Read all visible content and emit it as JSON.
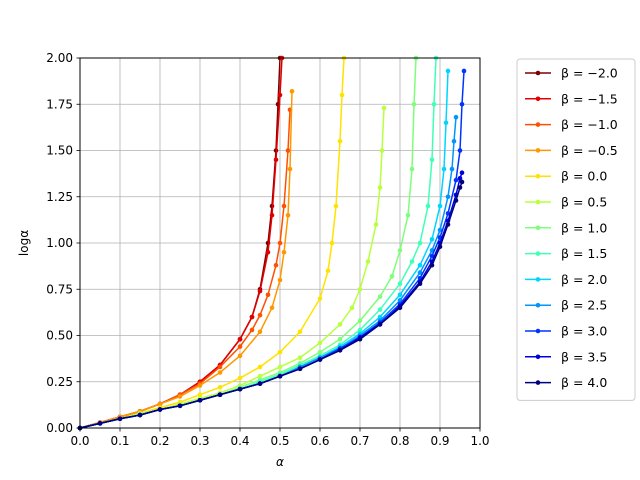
{
  "chart_data": {
    "type": "line",
    "xlabel": "α",
    "ylabel": "logα",
    "xlim": [
      0.0,
      1.0
    ],
    "ylim": [
      0.0,
      2.0
    ],
    "grid": true,
    "legend_position": "outside-right",
    "xticks": [
      "0.0",
      "0.1",
      "0.2",
      "0.3",
      "0.4",
      "0.5",
      "0.6",
      "0.7",
      "0.8",
      "0.9",
      "1.0"
    ],
    "yticks": [
      "0.00",
      "0.25",
      "0.50",
      "0.75",
      "1.00",
      "1.25",
      "1.50",
      "1.75",
      "2.00"
    ],
    "series": [
      {
        "name": "β = −2.0",
        "color": "#7f0000",
        "x": [
          0.0,
          0.05,
          0.1,
          0.15,
          0.2,
          0.25,
          0.3,
          0.35,
          0.4,
          0.43,
          0.45,
          0.47,
          0.48,
          0.49,
          0.495,
          0.5
        ],
        "y": [
          0.0,
          0.03,
          0.06,
          0.09,
          0.13,
          0.18,
          0.25,
          0.34,
          0.48,
          0.6,
          0.75,
          1.0,
          1.2,
          1.5,
          1.75,
          2.0
        ]
      },
      {
        "name": "β = −1.5",
        "color": "#e30000",
        "x": [
          0.0,
          0.05,
          0.1,
          0.15,
          0.2,
          0.25,
          0.3,
          0.35,
          0.4,
          0.43,
          0.45,
          0.47,
          0.48,
          0.49,
          0.5,
          0.505
        ],
        "y": [
          0.0,
          0.03,
          0.06,
          0.09,
          0.13,
          0.18,
          0.25,
          0.34,
          0.48,
          0.6,
          0.74,
          0.95,
          1.15,
          1.45,
          1.8,
          2.0
        ]
      },
      {
        "name": "β = −1.0",
        "color": "#ff5000",
        "x": [
          0.0,
          0.05,
          0.1,
          0.15,
          0.2,
          0.25,
          0.3,
          0.35,
          0.4,
          0.43,
          0.45,
          0.47,
          0.49,
          0.5,
          0.51,
          0.52,
          0.525
        ],
        "y": [
          0.0,
          0.03,
          0.06,
          0.09,
          0.13,
          0.18,
          0.24,
          0.33,
          0.44,
          0.53,
          0.61,
          0.72,
          0.88,
          1.0,
          1.2,
          1.5,
          1.72
        ]
      },
      {
        "name": "β = −0.5",
        "color": "#ff9800",
        "x": [
          0.0,
          0.05,
          0.1,
          0.15,
          0.2,
          0.25,
          0.3,
          0.35,
          0.4,
          0.45,
          0.48,
          0.5,
          0.51,
          0.52,
          0.525,
          0.53
        ],
        "y": [
          0.0,
          0.03,
          0.06,
          0.09,
          0.13,
          0.17,
          0.23,
          0.3,
          0.39,
          0.52,
          0.65,
          0.8,
          0.95,
          1.15,
          1.4,
          1.82
        ]
      },
      {
        "name": "β = 0.0",
        "color": "#ffe200",
        "x": [
          0.0,
          0.05,
          0.1,
          0.15,
          0.2,
          0.25,
          0.3,
          0.35,
          0.4,
          0.45,
          0.5,
          0.55,
          0.6,
          0.62,
          0.63,
          0.64,
          0.65,
          0.655,
          0.66
        ],
        "y": [
          0.0,
          0.025,
          0.05,
          0.08,
          0.11,
          0.14,
          0.18,
          0.22,
          0.27,
          0.33,
          0.41,
          0.52,
          0.7,
          0.85,
          1.0,
          1.2,
          1.55,
          1.8,
          2.0
        ]
      },
      {
        "name": "β = 0.5",
        "color": "#b8ff3f",
        "x": [
          0.0,
          0.05,
          0.1,
          0.15,
          0.2,
          0.25,
          0.3,
          0.35,
          0.4,
          0.45,
          0.5,
          0.55,
          0.6,
          0.65,
          0.68,
          0.7,
          0.72,
          0.74,
          0.75,
          0.755,
          0.76
        ],
        "y": [
          0.0,
          0.025,
          0.05,
          0.08,
          0.1,
          0.13,
          0.16,
          0.19,
          0.23,
          0.28,
          0.33,
          0.38,
          0.46,
          0.56,
          0.65,
          0.75,
          0.9,
          1.1,
          1.3,
          1.5,
          1.73
        ]
      },
      {
        "name": "β = 1.0",
        "color": "#7dff7a",
        "x": [
          0.0,
          0.05,
          0.1,
          0.15,
          0.2,
          0.25,
          0.3,
          0.35,
          0.4,
          0.45,
          0.5,
          0.55,
          0.6,
          0.65,
          0.7,
          0.75,
          0.78,
          0.8,
          0.82,
          0.83,
          0.835,
          0.84
        ],
        "y": [
          0.0,
          0.025,
          0.05,
          0.07,
          0.1,
          0.12,
          0.15,
          0.18,
          0.22,
          0.26,
          0.3,
          0.35,
          0.41,
          0.48,
          0.58,
          0.71,
          0.82,
          0.96,
          1.15,
          1.4,
          1.75,
          2.0
        ]
      },
      {
        "name": "β = 1.5",
        "color": "#42ffb6",
        "x": [
          0.0,
          0.05,
          0.1,
          0.15,
          0.2,
          0.25,
          0.3,
          0.35,
          0.4,
          0.45,
          0.5,
          0.55,
          0.6,
          0.65,
          0.7,
          0.75,
          0.8,
          0.83,
          0.85,
          0.87,
          0.88,
          0.885,
          0.89
        ],
        "y": [
          0.0,
          0.025,
          0.05,
          0.07,
          0.1,
          0.12,
          0.15,
          0.18,
          0.21,
          0.25,
          0.29,
          0.34,
          0.39,
          0.45,
          0.53,
          0.64,
          0.78,
          0.9,
          1.0,
          1.2,
          1.45,
          1.75,
          2.0
        ]
      },
      {
        "name": "β = 2.0",
        "color": "#00d4ff",
        "x": [
          0.0,
          0.05,
          0.1,
          0.15,
          0.2,
          0.25,
          0.3,
          0.35,
          0.4,
          0.45,
          0.5,
          0.55,
          0.6,
          0.65,
          0.7,
          0.75,
          0.8,
          0.85,
          0.88,
          0.9,
          0.91,
          0.915,
          0.92
        ],
        "y": [
          0.0,
          0.025,
          0.05,
          0.07,
          0.1,
          0.12,
          0.15,
          0.18,
          0.21,
          0.24,
          0.28,
          0.33,
          0.38,
          0.44,
          0.51,
          0.6,
          0.72,
          0.88,
          1.02,
          1.2,
          1.4,
          1.65,
          1.93
        ]
      },
      {
        "name": "β = 2.5",
        "color": "#0094ff",
        "x": [
          0.0,
          0.05,
          0.1,
          0.15,
          0.2,
          0.25,
          0.3,
          0.35,
          0.4,
          0.45,
          0.5,
          0.55,
          0.6,
          0.65,
          0.7,
          0.75,
          0.8,
          0.85,
          0.88,
          0.9,
          0.92,
          0.93,
          0.935,
          0.94
        ],
        "y": [
          0.0,
          0.025,
          0.05,
          0.07,
          0.1,
          0.12,
          0.15,
          0.18,
          0.21,
          0.24,
          0.28,
          0.33,
          0.38,
          0.43,
          0.5,
          0.58,
          0.69,
          0.84,
          0.96,
          1.07,
          1.25,
          1.4,
          1.55,
          1.68
        ]
      },
      {
        "name": "β = 3.0",
        "color": "#0034ff",
        "x": [
          0.0,
          0.05,
          0.1,
          0.15,
          0.2,
          0.25,
          0.3,
          0.35,
          0.4,
          0.45,
          0.5,
          0.55,
          0.6,
          0.65,
          0.7,
          0.75,
          0.8,
          0.85,
          0.88,
          0.9,
          0.92,
          0.94,
          0.95,
          0.955,
          0.96
        ],
        "y": [
          0.0,
          0.025,
          0.05,
          0.07,
          0.1,
          0.12,
          0.15,
          0.18,
          0.21,
          0.24,
          0.28,
          0.32,
          0.37,
          0.43,
          0.49,
          0.57,
          0.67,
          0.81,
          0.93,
          1.03,
          1.16,
          1.34,
          1.5,
          1.75,
          1.93
        ]
      },
      {
        "name": "β = 3.5",
        "color": "#0000de",
        "x": [
          0.0,
          0.05,
          0.1,
          0.15,
          0.2,
          0.25,
          0.3,
          0.35,
          0.4,
          0.45,
          0.5,
          0.55,
          0.6,
          0.65,
          0.7,
          0.75,
          0.8,
          0.85,
          0.88,
          0.9,
          0.92,
          0.94,
          0.95,
          0.955
        ],
        "y": [
          0.0,
          0.025,
          0.05,
          0.07,
          0.1,
          0.12,
          0.15,
          0.18,
          0.21,
          0.24,
          0.28,
          0.32,
          0.37,
          0.42,
          0.49,
          0.56,
          0.66,
          0.79,
          0.9,
          1.0,
          1.12,
          1.26,
          1.35,
          1.38
        ]
      },
      {
        "name": "β = 4.0",
        "color": "#000080",
        "x": [
          0.0,
          0.05,
          0.1,
          0.15,
          0.2,
          0.25,
          0.3,
          0.35,
          0.4,
          0.45,
          0.5,
          0.55,
          0.6,
          0.65,
          0.7,
          0.75,
          0.8,
          0.85,
          0.88,
          0.9,
          0.92,
          0.94,
          0.95,
          0.955
        ],
        "y": [
          0.0,
          0.025,
          0.05,
          0.07,
          0.1,
          0.12,
          0.15,
          0.18,
          0.21,
          0.24,
          0.28,
          0.32,
          0.37,
          0.42,
          0.48,
          0.56,
          0.65,
          0.78,
          0.88,
          0.98,
          1.1,
          1.23,
          1.3,
          1.33
        ]
      }
    ]
  }
}
